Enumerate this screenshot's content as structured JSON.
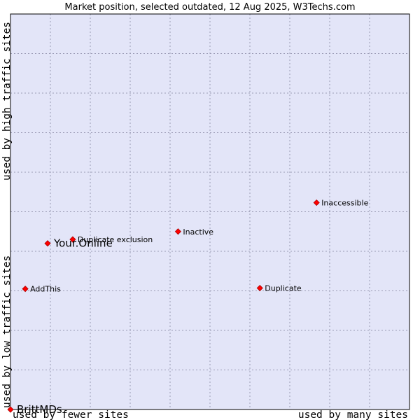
{
  "chart_data": {
    "type": "scatter",
    "title": "Market position, selected outdated, 12 Aug 2025, W3Techs.com",
    "xlabel_left": "used by fewer sites",
    "xlabel_right": "used by many sites",
    "ylabel_bottom": "used by low traffic sites",
    "ylabel_top": "used by high traffic sites",
    "xlim": [
      0,
      10
    ],
    "ylim": [
      0,
      10
    ],
    "grid": true,
    "colors": {
      "plot_background": "#e3e5f8",
      "marker": "#ff0000",
      "marker_edge": "#aa0000",
      "frame": "#000000"
    },
    "points": [
      {
        "label": "Inaccessible",
        "x": 7.67,
        "y": 5.23,
        "highlight": false
      },
      {
        "label": "Inactive",
        "x": 4.2,
        "y": 4.5,
        "highlight": false
      },
      {
        "label": "Duplicate exclusion",
        "x": 1.56,
        "y": 4.3,
        "highlight": false
      },
      {
        "label": "Your.Online",
        "x": 0.93,
        "y": 4.2,
        "highlight": true
      },
      {
        "label": "AddThis",
        "x": 0.37,
        "y": 3.05,
        "highlight": false
      },
      {
        "label": "Duplicate",
        "x": 6.25,
        "y": 3.07,
        "highlight": false
      },
      {
        "label": "BrittMDs",
        "x": 0.0,
        "y": 0.0,
        "highlight": true
      }
    ]
  }
}
